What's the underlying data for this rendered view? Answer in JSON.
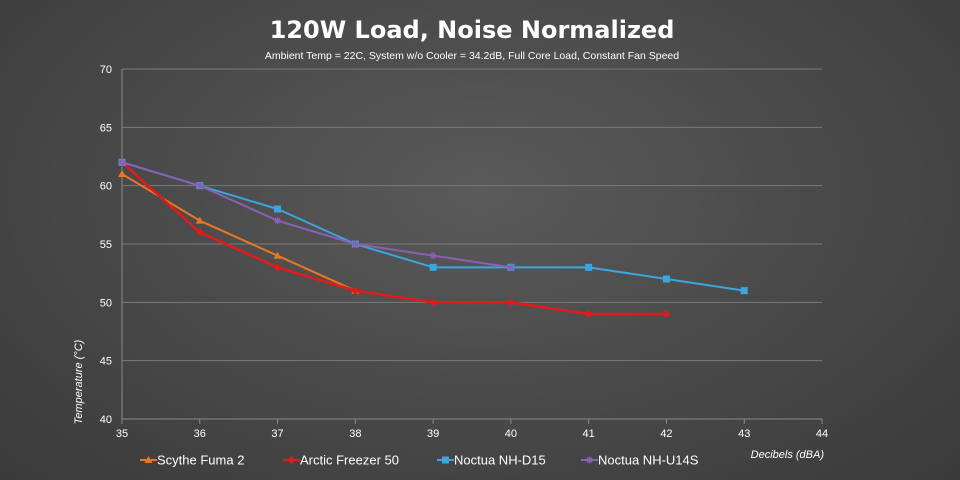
{
  "chart_data": {
    "type": "line",
    "title": "120W Load, Noise Normalized",
    "subtitle": "Ambient Temp = 22C, System w/o Cooler = 34.2dB, Full Core Load, Constant Fan Speed",
    "xlabel": "Decibels (dBA)",
    "ylabel": "Temperature (°C)",
    "xlim": [
      35,
      44
    ],
    "ylim": [
      40,
      70
    ],
    "x_ticks": [
      35,
      36,
      37,
      38,
      39,
      40,
      41,
      42,
      43,
      44
    ],
    "y_ticks": [
      40,
      45,
      50,
      55,
      60,
      65,
      70
    ],
    "grid": true,
    "legend_position": "bottom",
    "series": [
      {
        "name": "Scythe Fuma 2",
        "color": "#e87722",
        "marker": "triangle",
        "x": [
          35,
          36,
          37,
          38
        ],
        "y": [
          61,
          57,
          54,
          51
        ]
      },
      {
        "name": "Arctic Freezer 50",
        "color": "#e01b1b",
        "marker": "diamond",
        "x": [
          35,
          36,
          37,
          38,
          39,
          40,
          41,
          42
        ],
        "y": [
          62,
          56,
          53,
          51,
          50,
          50,
          49,
          49
        ]
      },
      {
        "name": "Noctua NH-D15",
        "color": "#3aa6dd",
        "marker": "square",
        "x": [
          35,
          36,
          37,
          38,
          39,
          40,
          41,
          42,
          43
        ],
        "y": [
          62,
          60,
          58,
          55,
          53,
          53,
          53,
          52,
          51
        ]
      },
      {
        "name": "Noctua NH-U14S",
        "color": "#8a5fb5",
        "marker": "star",
        "x": [
          35,
          36,
          37,
          38,
          39,
          40
        ],
        "y": [
          62,
          60,
          57,
          55,
          54,
          53
        ]
      }
    ]
  }
}
